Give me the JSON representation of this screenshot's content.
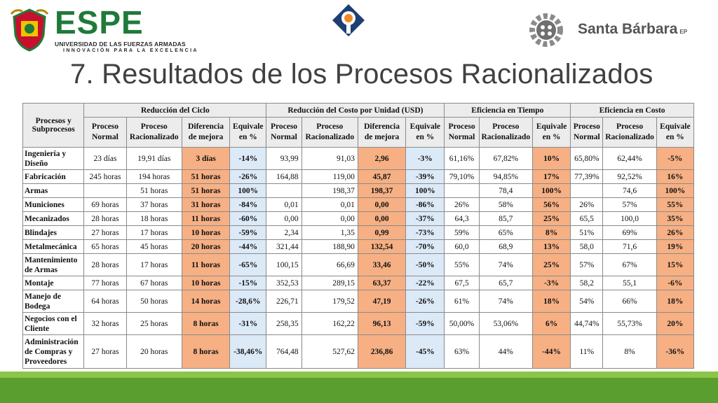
{
  "header": {
    "espe_name": "ESPE",
    "espe_subtitle": "UNIVERSIDAD DE LAS FUERZAS ARMADAS",
    "espe_motto": "INNOVACIÓN PARA LA EXCELENCIA",
    "santa_barbara_name": "Santa Bárbara",
    "santa_barbara_suffix": "EP"
  },
  "slide": {
    "title": "7. Resultados de los Procesos Racionalizados"
  },
  "table": {
    "first_header": "Procesos y Subprocesos",
    "groups": [
      "Reducción del Ciclo",
      "Reducción del Costo por Unidad (USD)",
      "Eficiencia en Tiempo",
      "Eficiencia en Costo"
    ],
    "subheaders": [
      "Proceso Normal",
      "Proceso Racionalizado",
      "Diferencia de mejora",
      "Equivale en %",
      "Proceso Normal",
      "Proceso Racionalizado",
      "Diferencia de mejora",
      "Equivale en %",
      "Proceso Normal",
      "Proceso Racionalizado",
      "Equivale en %",
      "Proceso Normal",
      "Proceso Racionalizado",
      "Equivale en %"
    ],
    "rows": [
      {
        "name": "Ingeniería y Diseño",
        "v": [
          "23 días",
          "19,91 días",
          "3 días",
          "-14%",
          "93,99",
          "91,03",
          "2,96",
          "-3%",
          "61,16%",
          "67,82%",
          "10%",
          "65,80%",
          "62,44%",
          "-5%"
        ]
      },
      {
        "name": "Fabricación",
        "v": [
          "245 horas",
          "194 horas",
          "51 horas",
          "-26%",
          "164,88",
          "119,00",
          "45,87",
          "-39%",
          "79,10%",
          "94,85%",
          "17%",
          "77,39%",
          "92,52%",
          "16%"
        ]
      },
      {
        "name": "Armas",
        "v": [
          "",
          "51 horas",
          "51 horas",
          "100%",
          "",
          "198,37",
          "198,37",
          "100%",
          "",
          "78,4",
          "100%",
          "",
          "74,6",
          "100%"
        ]
      },
      {
        "name": "Municiones",
        "v": [
          "69 horas",
          "37 horas",
          "31 horas",
          "-84%",
          "0,01",
          "0,01",
          "0,00",
          "-86%",
          "26%",
          "58%",
          "56%",
          "26%",
          "57%",
          "55%"
        ]
      },
      {
        "name": "Mecanizados",
        "v": [
          "28 horas",
          "18 horas",
          "11 horas",
          "-60%",
          "0,00",
          "0,00",
          "0,00",
          "-37%",
          "64,3",
          "85,7",
          "25%",
          "65,5",
          "100,0",
          "35%"
        ]
      },
      {
        "name": "Blindajes",
        "v": [
          "27 horas",
          "17 horas",
          "10 horas",
          "-59%",
          "2,34",
          "1,35",
          "0,99",
          "-73%",
          "59%",
          "65%",
          "8%",
          "51%",
          "69%",
          "26%"
        ]
      },
      {
        "name": "Metalmecánica",
        "v": [
          "65 horas",
          "45 horas",
          "20 horas",
          "-44%",
          "321,44",
          "188,90",
          "132,54",
          "-70%",
          "60,0",
          "68,9",
          "13%",
          "58,0",
          "71,6",
          "19%"
        ]
      },
      {
        "name": "Mantenimiento de Armas",
        "v": [
          "28 horas",
          "17 horas",
          "11 horas",
          "-65%",
          "100,15",
          "66,69",
          "33,46",
          "-50%",
          "55%",
          "74%",
          "25%",
          "57%",
          "67%",
          "15%"
        ]
      },
      {
        "name": "Montaje",
        "v": [
          "77 horas",
          "67 horas",
          "10 horas",
          "-15%",
          "352,53",
          "289,15",
          "63,37",
          "-22%",
          "67,5",
          "65,7",
          "-3%",
          "58,2",
          "55,1",
          "-6%"
        ]
      },
      {
        "name": "Manejo de Bodega",
        "v": [
          "64 horas",
          "50 horas",
          "14 horas",
          "-28,6%",
          "226,71",
          "179,52",
          "47,19",
          "-26%",
          "61%",
          "74%",
          "18%",
          "54%",
          "66%",
          "18%"
        ]
      },
      {
        "name": "Negocios con el Cliente",
        "v": [
          "32 horas",
          "25 horas",
          "8 horas",
          "-31%",
          "258,35",
          "162,22",
          "96,13",
          "-59%",
          "50,00%",
          "53,06%",
          "6%",
          "44,74%",
          "55,73%",
          "20%"
        ]
      },
      {
        "name": "Administración de Compras y Proveedores",
        "v": [
          "27 horas",
          "20 horas",
          "8 horas",
          "-38,46%",
          "764,48",
          "527,62",
          "236,86",
          "-45%",
          "63%",
          "44%",
          "-44%",
          "11%",
          "8%",
          "-36%"
        ]
      }
    ]
  },
  "colors": {
    "highlight_orange": "#f6b084",
    "highlight_blue": "#dce9f7",
    "footer_green_light": "#8dc44a",
    "footer_green_dark": "#5a9e2f",
    "espe_green": "#1f7a3a"
  }
}
